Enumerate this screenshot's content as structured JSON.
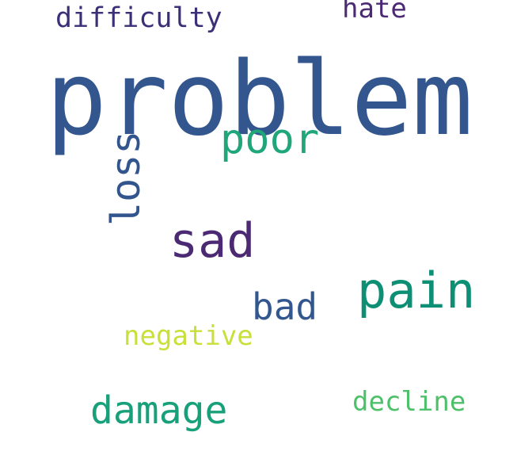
{
  "words": {
    "problem": "problem",
    "poor": "poor",
    "loss": "loss",
    "sad": "sad",
    "pain": "pain",
    "bad": "bad",
    "negative": "negative",
    "damage": "damage",
    "decline": "decline",
    "difficulty": "difficulty",
    "hate": "hate"
  },
  "colors": {
    "background": "#ffffff",
    "dark_blue": "#32568d",
    "teal": "#1fa67a",
    "purple": "#4b2a73",
    "green": "#0c8f74",
    "yellow_green": "#c9df3a",
    "light_green": "#4fc06a",
    "indigo": "#3b2f78"
  }
}
